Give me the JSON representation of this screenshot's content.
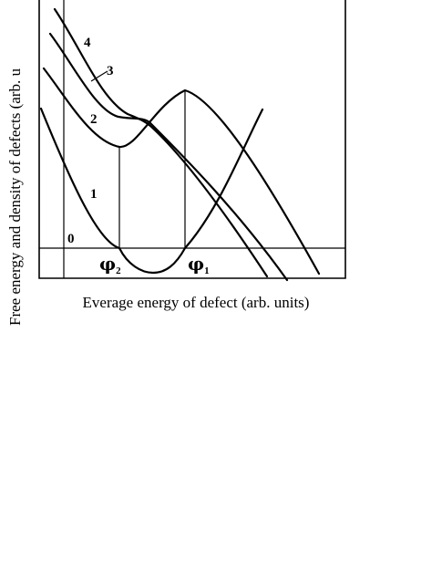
{
  "chart_data": {
    "type": "line",
    "title": "",
    "xlabel": "Everage energy of defect (arb. units)",
    "ylabel": "Free energy and density of defects (arb. u",
    "origin_label": "0",
    "series": [
      {
        "name": "1",
        "label": "1",
        "role": "density of defects"
      },
      {
        "name": "2",
        "label": "2",
        "role": "free energy"
      },
      {
        "name": "3",
        "label": "3",
        "role": "free energy"
      },
      {
        "name": "4",
        "label": "4",
        "role": "free energy"
      }
    ],
    "markers": [
      {
        "symbol": "φ",
        "subscript": "2"
      },
      {
        "symbol": "φ",
        "subscript": "1"
      }
    ],
    "grid": false,
    "legend": "none"
  }
}
